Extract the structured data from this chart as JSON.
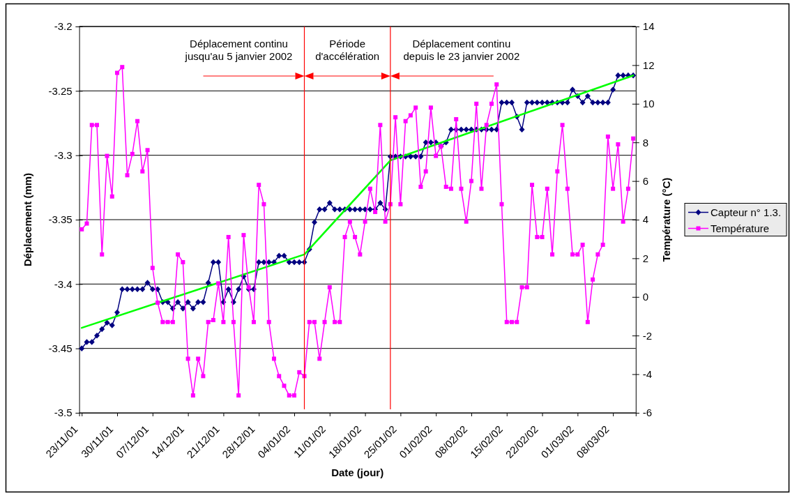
{
  "chart_data": {
    "type": "line",
    "xlabel": "Date (jour)",
    "ylabel": "Déplacement (mm)",
    "y2label": "Température (°C)",
    "x": [
      "2001-11-23",
      "2001-11-24",
      "2001-11-25",
      "2001-11-26",
      "2001-11-27",
      "2001-11-28",
      "2001-11-29",
      "2001-11-30",
      "2001-12-01",
      "2001-12-02",
      "2001-12-03",
      "2001-12-04",
      "2001-12-05",
      "2001-12-06",
      "2001-12-07",
      "2001-12-08",
      "2001-12-09",
      "2001-12-10",
      "2001-12-11",
      "2001-12-12",
      "2001-12-13",
      "2001-12-14",
      "2001-12-15",
      "2001-12-16",
      "2001-12-17",
      "2001-12-18",
      "2001-12-19",
      "2001-12-20",
      "2001-12-21",
      "2001-12-22",
      "2001-12-23",
      "2001-12-24",
      "2001-12-25",
      "2001-12-26",
      "2001-12-27",
      "2001-12-28",
      "2001-12-29",
      "2001-12-30",
      "2001-12-31",
      "2002-01-01",
      "2002-01-02",
      "2002-01-03",
      "2002-01-04",
      "2002-01-05",
      "2002-01-06",
      "2002-01-07",
      "2002-01-08",
      "2002-01-09",
      "2002-01-10",
      "2002-01-11",
      "2002-01-12",
      "2002-01-13",
      "2002-01-14",
      "2002-01-15",
      "2002-01-16",
      "2002-01-17",
      "2002-01-18",
      "2002-01-19",
      "2002-01-20",
      "2002-01-21",
      "2002-01-22",
      "2002-01-23",
      "2002-01-24",
      "2002-01-25",
      "2002-01-26",
      "2002-01-27",
      "2002-01-28",
      "2002-01-29",
      "2002-01-30",
      "2002-01-31",
      "2002-02-01",
      "2002-02-02",
      "2002-02-03",
      "2002-02-04",
      "2002-02-05",
      "2002-02-06",
      "2002-02-07",
      "2002-02-08",
      "2002-02-09",
      "2002-02-10",
      "2002-02-11",
      "2002-02-12",
      "2002-02-13",
      "2002-02-14",
      "2002-02-15",
      "2002-02-16",
      "2002-02-17",
      "2002-02-18",
      "2002-02-19",
      "2002-02-20",
      "2002-02-21",
      "2002-02-22",
      "2002-02-23",
      "2002-02-24",
      "2002-02-25",
      "2002-02-26",
      "2002-02-27",
      "2002-02-28",
      "2002-03-01",
      "2002-03-02",
      "2002-03-03",
      "2002-03-04",
      "2002-03-05",
      "2002-03-06",
      "2002-03-07",
      "2002-03-08",
      "2002-03-09",
      "2002-03-10",
      "2002-03-11",
      "2002-03-12"
    ],
    "xlim": [
      "2001-11-22T12:00",
      "2002-03-12T12:00"
    ],
    "xticks": [
      {
        "value": "2001-11-23",
        "label": "23/11/01"
      },
      {
        "value": "2001-11-30",
        "label": "30/11/01"
      },
      {
        "value": "2001-12-07",
        "label": "07/12/01"
      },
      {
        "value": "2001-12-14",
        "label": "14/12/01"
      },
      {
        "value": "2001-12-21",
        "label": "21/12/01"
      },
      {
        "value": "2001-12-28",
        "label": "28/12/01"
      },
      {
        "value": "2002-01-04",
        "label": "04/01/02"
      },
      {
        "value": "2002-01-11",
        "label": "11/01/02"
      },
      {
        "value": "2002-01-18",
        "label": "18/01/02"
      },
      {
        "value": "2002-01-25",
        "label": "25/01/02"
      },
      {
        "value": "2002-02-01",
        "label": "01/02/02"
      },
      {
        "value": "2002-02-08",
        "label": "08/02/02"
      },
      {
        "value": "2002-02-15",
        "label": "15/02/02"
      },
      {
        "value": "2002-02-22",
        "label": "22/02/02"
      },
      {
        "value": "2002-03-01",
        "label": "01/03/02"
      },
      {
        "value": "2002-03-08",
        "label": "08/03/02"
      }
    ],
    "ylim": [
      -3.5,
      -3.2
    ],
    "yticks": [
      -3.5,
      -3.45,
      -3.4,
      -3.35,
      -3.3,
      -3.25,
      -3.2
    ],
    "y2lim": [
      -6,
      14
    ],
    "y2ticks": [
      -6,
      -4,
      -2,
      0,
      2,
      4,
      6,
      8,
      10,
      12,
      14
    ],
    "grid": "y",
    "legend": "right",
    "series": [
      {
        "name": "Capteur n° 1.3.",
        "color": "#000080",
        "marker": "diamond",
        "values": [
          -3.45,
          -3.445,
          -3.445,
          -3.44,
          -3.435,
          -3.43,
          -3.432,
          -3.422,
          -3.404,
          -3.404,
          -3.404,
          -3.404,
          -3.404,
          -3.399,
          -3.404,
          -3.404,
          -3.414,
          -3.414,
          -3.419,
          -3.414,
          -3.419,
          -3.414,
          -3.419,
          -3.414,
          -3.414,
          -3.399,
          -3.383,
          -3.383,
          -3.414,
          -3.404,
          -3.414,
          -3.404,
          -3.394,
          -3.404,
          -3.404,
          -3.383,
          -3.383,
          -3.383,
          -3.383,
          -3.378,
          -3.378,
          -3.383,
          -3.383,
          -3.383,
          -3.383,
          -3.373,
          -3.352,
          -3.342,
          -3.342,
          -3.337,
          -3.342,
          -3.342,
          -3.342,
          -3.342,
          -3.342,
          -3.342,
          -3.342,
          -3.342,
          -3.342,
          -3.337,
          -3.342,
          -3.301,
          -3.301,
          -3.301,
          -3.301,
          -3.301,
          -3.301,
          -3.301,
          -3.29,
          -3.29,
          -3.29,
          -3.293,
          -3.29,
          -3.28,
          -3.28,
          -3.28,
          -3.28,
          -3.28,
          -3.28,
          -3.28,
          -3.28,
          -3.28,
          -3.28,
          -3.259,
          -3.259,
          -3.259,
          -3.27,
          -3.28,
          -3.259,
          -3.259,
          -3.259,
          -3.259,
          -3.259,
          -3.259,
          -3.259,
          -3.259,
          -3.259,
          -3.249,
          -3.254,
          -3.259,
          -3.254,
          -3.259,
          -3.259,
          -3.259,
          -3.259,
          -3.249,
          -3.238,
          -3.238,
          -3.238,
          -3.238
        ]
      },
      {
        "type": "line",
        "color": "#00ff00",
        "marker": "none",
        "x": [
          "2001-11-23",
          "2002-01-06",
          "2002-01-23",
          "2002-03-12"
        ],
        "values": [
          -3.434,
          -3.377,
          -3.304,
          -3.238
        ]
      },
      {
        "name": "Température",
        "color": "#ff00ff",
        "marker": "square",
        "axis": "y2",
        "values": [
          3.5,
          3.8,
          8.9,
          8.9,
          2.2,
          7.3,
          5.2,
          11.6,
          11.9,
          6.3,
          7.4,
          9.1,
          6.5,
          7.6,
          1.5,
          -0.3,
          -1.3,
          -1.3,
          -1.3,
          2.2,
          1.8,
          -3.2,
          -5.1,
          -3.2,
          -4.1,
          -1.3,
          -1.2,
          0.7,
          -1.3,
          3.1,
          -1.3,
          -5.1,
          3.2,
          0.5,
          -1.3,
          5.8,
          4.8,
          -1.3,
          -3.2,
          -4.1,
          -4.6,
          -5.1,
          -5.1,
          -3.9,
          -4.1,
          -1.3,
          -1.3,
          -3.2,
          -1.3,
          0.5,
          -1.3,
          -1.3,
          3.1,
          3.9,
          3.1,
          2.2,
          3.9,
          5.6,
          4.4,
          8.9,
          3.9,
          4.8,
          9.3,
          4.8,
          9.1,
          9.4,
          9.8,
          5.7,
          6.5,
          9.8,
          7.3,
          7.8,
          5.7,
          5.6,
          9.2,
          5.6,
          3.9,
          6.0,
          10.0,
          5.6,
          8.9,
          10.0,
          11.0,
          4.8,
          -1.3,
          -1.3,
          -1.3,
          0.5,
          0.5,
          5.8,
          3.1,
          3.1,
          5.6,
          2.2,
          6.5,
          8.9,
          5.6,
          2.2,
          2.2,
          2.7,
          -1.3,
          0.9,
          2.2,
          2.7,
          8.3,
          5.6,
          7.9,
          3.9,
          5.6,
          8.2
        ]
      }
    ],
    "ref_lines": [
      {
        "axis": "x",
        "value": "2002-01-06",
        "color": "#ff0000"
      },
      {
        "axis": "x",
        "value": "2002-01-23",
        "color": "#ff0000"
      }
    ],
    "annotations": [
      "Déplacement continu\njusqu'au 5 janvier 2002",
      "Période\nd'accélération",
      "Déplacement continu\ndepuis le 23 janvier 2002"
    ]
  }
}
